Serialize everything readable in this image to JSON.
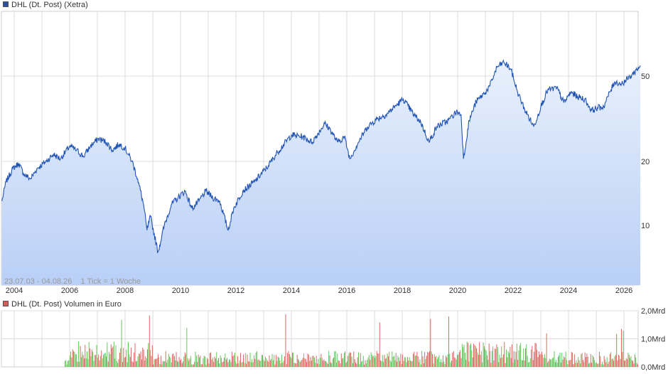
{
  "colors": {
    "price_line": "#2255b3",
    "price_area_top": "#e8f0fb",
    "price_area_bottom": "#b9cff6",
    "grid": "#dcdcdc",
    "volume_up": "#55c24a",
    "volume_down": "#d65a55",
    "price_legend_swatch": "#2a4fa5",
    "volume_legend_swatch": "#d0605c"
  },
  "price_legend": "DHL (Dt. Post) (Xetra)",
  "volume_legend": "DHL (Dt. Post) Volumen in Euro",
  "meta_text": "23.07.03 - 04.08.26    1 Tick = 1 Woche",
  "chart_data": [
    {
      "type": "line",
      "scale": "log",
      "series": [
        {
          "name": "DHL (Dt. Post) (Xetra)",
          "points": [
            [
              "2003-07-23",
              13.0
            ],
            [
              "2003-09-15",
              16.0
            ],
            [
              "2003-12-15",
              18.5
            ],
            [
              "2004-03-01",
              19.5
            ],
            [
              "2004-05-01",
              17.5
            ],
            [
              "2004-08-01",
              16.5
            ],
            [
              "2004-11-01",
              18.5
            ],
            [
              "2005-03-01",
              20.0
            ],
            [
              "2005-06-01",
              21.5
            ],
            [
              "2005-09-01",
              20.5
            ],
            [
              "2006-01-01",
              23.5
            ],
            [
              "2006-04-01",
              22.5
            ],
            [
              "2006-07-01",
              21.0
            ],
            [
              "2006-10-01",
              23.5
            ],
            [
              "2007-01-15",
              25.5
            ],
            [
              "2007-05-01",
              24.5
            ],
            [
              "2007-07-15",
              22.5
            ],
            [
              "2007-10-15",
              24.0
            ],
            [
              "2007-12-31",
              23.0
            ],
            [
              "2008-04-01",
              20.0
            ],
            [
              "2008-06-15",
              16.5
            ],
            [
              "2008-09-01",
              12.5
            ],
            [
              "2008-10-15",
              9.5
            ],
            [
              "2008-12-01",
              11.0
            ],
            [
              "2009-03-10",
              7.5
            ],
            [
              "2009-06-01",
              10.0
            ],
            [
              "2009-09-01",
              12.5
            ],
            [
              "2009-12-01",
              13.5
            ],
            [
              "2010-03-01",
              14.5
            ],
            [
              "2010-06-01",
              12.0
            ],
            [
              "2010-09-01",
              13.0
            ],
            [
              "2010-12-01",
              14.5
            ],
            [
              "2011-03-01",
              13.5
            ],
            [
              "2011-06-01",
              13.0
            ],
            [
              "2011-09-20",
              9.5
            ],
            [
              "2011-12-01",
              12.0
            ],
            [
              "2012-04-01",
              14.5
            ],
            [
              "2012-09-01",
              16.0
            ],
            [
              "2013-03-01",
              19.0
            ],
            [
              "2013-07-01",
              22.0
            ],
            [
              "2014-01-01",
              26.5
            ],
            [
              "2014-06-01",
              26.0
            ],
            [
              "2014-10-01",
              24.5
            ],
            [
              "2015-03-15",
              30.0
            ],
            [
              "2015-06-01",
              28.0
            ],
            [
              "2015-09-01",
              24.5
            ],
            [
              "2015-12-01",
              26.0
            ],
            [
              "2016-02-10",
              20.5
            ],
            [
              "2016-06-01",
              24.5
            ],
            [
              "2016-10-01",
              29.0
            ],
            [
              "2017-02-01",
              31.5
            ],
            [
              "2017-06-01",
              33.0
            ],
            [
              "2017-11-01",
              37.0
            ],
            [
              "2018-01-15",
              39.0
            ],
            [
              "2018-06-01",
              33.0
            ],
            [
              "2018-09-01",
              30.5
            ],
            [
              "2018-12-20",
              24.5
            ],
            [
              "2019-04-01",
              29.0
            ],
            [
              "2019-09-01",
              31.0
            ],
            [
              "2019-12-15",
              34.0
            ],
            [
              "2020-02-15",
              33.0
            ],
            [
              "2020-03-18",
              20.5
            ],
            [
              "2020-06-01",
              31.0
            ],
            [
              "2020-09-01",
              38.0
            ],
            [
              "2020-12-31",
              42.0
            ],
            [
              "2021-03-01",
              45.0
            ],
            [
              "2021-06-01",
              55.0
            ],
            [
              "2021-09-01",
              58.0
            ],
            [
              "2021-12-01",
              54.0
            ],
            [
              "2022-03-01",
              42.0
            ],
            [
              "2022-06-01",
              35.0
            ],
            [
              "2022-09-30",
              29.0
            ],
            [
              "2023-01-01",
              36.0
            ],
            [
              "2023-04-01",
              43.0
            ],
            [
              "2023-08-01",
              44.0
            ],
            [
              "2023-11-01",
              37.5
            ],
            [
              "2024-02-01",
              42.0
            ],
            [
              "2024-05-01",
              40.0
            ],
            [
              "2024-08-01",
              39.0
            ],
            [
              "2024-11-01",
              34.5
            ],
            [
              "2025-01-15",
              35.5
            ],
            [
              "2025-04-10",
              36.0
            ],
            [
              "2025-06-01",
              40.0
            ],
            [
              "2025-09-01",
              47.0
            ],
            [
              "2025-12-01",
              46.0
            ],
            [
              "2026-04-01",
              50.0
            ],
            [
              "2026-08-04",
              56.0
            ]
          ]
        }
      ],
      "x_ticks": [
        "2004",
        "2006",
        "2008",
        "2010",
        "2012",
        "2014",
        "2016",
        "2018",
        "2020",
        "2022",
        "2024",
        "2026"
      ],
      "y_ticks": [
        "50",
        "20",
        "10"
      ],
      "ylim": [
        6,
        80
      ],
      "grid": true
    },
    {
      "type": "bar",
      "series": [
        {
          "name": "DHL (Dt. Post) Volumen in Euro"
        }
      ],
      "y_ticks": [
        "2,0Mrd",
        "1,0Mrd",
        "0,0Mrd"
      ],
      "ylim": [
        0,
        2.0
      ],
      "typical_volume_range_mrd": [
        0.2,
        0.9
      ],
      "peak_volume_mrd": 1.9,
      "grid": true
    }
  ]
}
